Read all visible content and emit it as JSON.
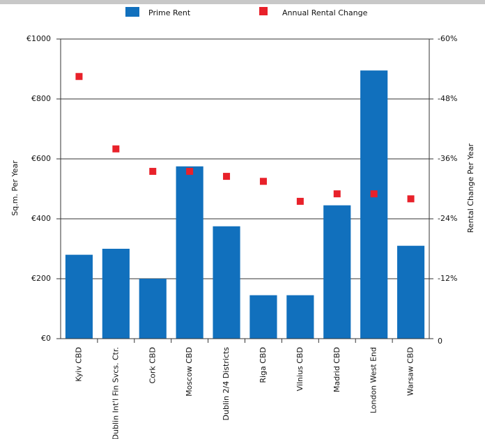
{
  "chart_data": {
    "type": "bar",
    "categories": [
      "Kyiv CBD",
      "Dublin Int'l Fin Svcs. Ctr.",
      "Cork CBD",
      "Moscow CBD",
      "Dublin 2/4 Districts",
      "Riga CBD",
      "Vilnius CBD",
      "Madrid CBD",
      "London West End",
      "Warsaw CBD"
    ],
    "series": [
      {
        "name": "Prime Rent",
        "type": "bar",
        "color": "#1170bd",
        "axis": "y",
        "values": [
          280,
          300,
          200,
          575,
          375,
          145,
          145,
          445,
          895,
          310
        ]
      },
      {
        "name": "Annual Rental Change",
        "type": "scatter",
        "color": "#e8212a",
        "axis": "y2",
        "values": [
          -52.5,
          -38,
          -33.5,
          -33.5,
          -32.5,
          -31.5,
          -27.5,
          -29,
          -29,
          -28
        ]
      }
    ],
    "y_label": "Sq.m. Per Year",
    "y2_label": "Rental Change Per Year",
    "ylim": [
      0,
      1000
    ],
    "yticks": [
      {
        "value": 0,
        "label": "€0"
      },
      {
        "value": 200,
        "label": "€200"
      },
      {
        "value": 400,
        "label": "€400"
      },
      {
        "value": 600,
        "label": "€600"
      },
      {
        "value": 800,
        "label": "€800"
      },
      {
        "value": 1000,
        "label": "€1000"
      }
    ],
    "y2lim": [
      0,
      -60
    ],
    "y2ticks": [
      0,
      {
        "value": -12,
        "label": "-12%"
      },
      {
        "value": -24,
        "label": "-24%"
      },
      {
        "value": -36,
        "label": "-36%"
      },
      {
        "value": -48,
        "label": "-48%"
      },
      {
        "value": -60,
        "label": "-60%"
      }
    ],
    "grid": true,
    "legend": "top"
  }
}
